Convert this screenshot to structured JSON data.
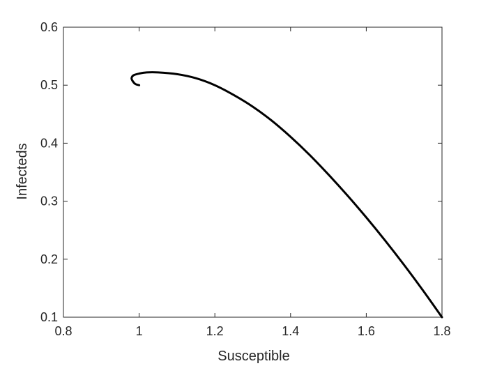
{
  "chart_data": {
    "type": "line",
    "title": "",
    "xlabel": "Susceptible",
    "ylabel": "Infecteds",
    "xlim": [
      0.8,
      1.8
    ],
    "ylim": [
      0.1,
      0.6
    ],
    "xticks": [
      0.8,
      1,
      1.2,
      1.4,
      1.6,
      1.8
    ],
    "yticks": [
      0.1,
      0.2,
      0.3,
      0.4,
      0.5,
      0.6
    ],
    "xtick_labels": [
      "0.8",
      "1",
      "1.2",
      "1.4",
      "1.6",
      "1.8"
    ],
    "ytick_labels": [
      "0.1",
      "0.2",
      "0.3",
      "0.4",
      "0.5",
      "0.6"
    ],
    "grid": false,
    "legend": "none",
    "series": [
      {
        "color": "#000000",
        "x": [
          1.8,
          1.75,
          1.7,
          1.65,
          1.6,
          1.55,
          1.5,
          1.45,
          1.4,
          1.35,
          1.3,
          1.25,
          1.2,
          1.15,
          1.1,
          1.05,
          1.02,
          1.0,
          0.985,
          0.98,
          0.983,
          0.99,
          1.0
        ],
        "y": [
          0.1,
          0.146,
          0.19,
          0.232,
          0.272,
          0.31,
          0.346,
          0.38,
          0.411,
          0.439,
          0.463,
          0.483,
          0.5,
          0.512,
          0.519,
          0.522,
          0.522,
          0.52,
          0.517,
          0.512,
          0.507,
          0.502,
          0.5
        ]
      }
    ]
  }
}
